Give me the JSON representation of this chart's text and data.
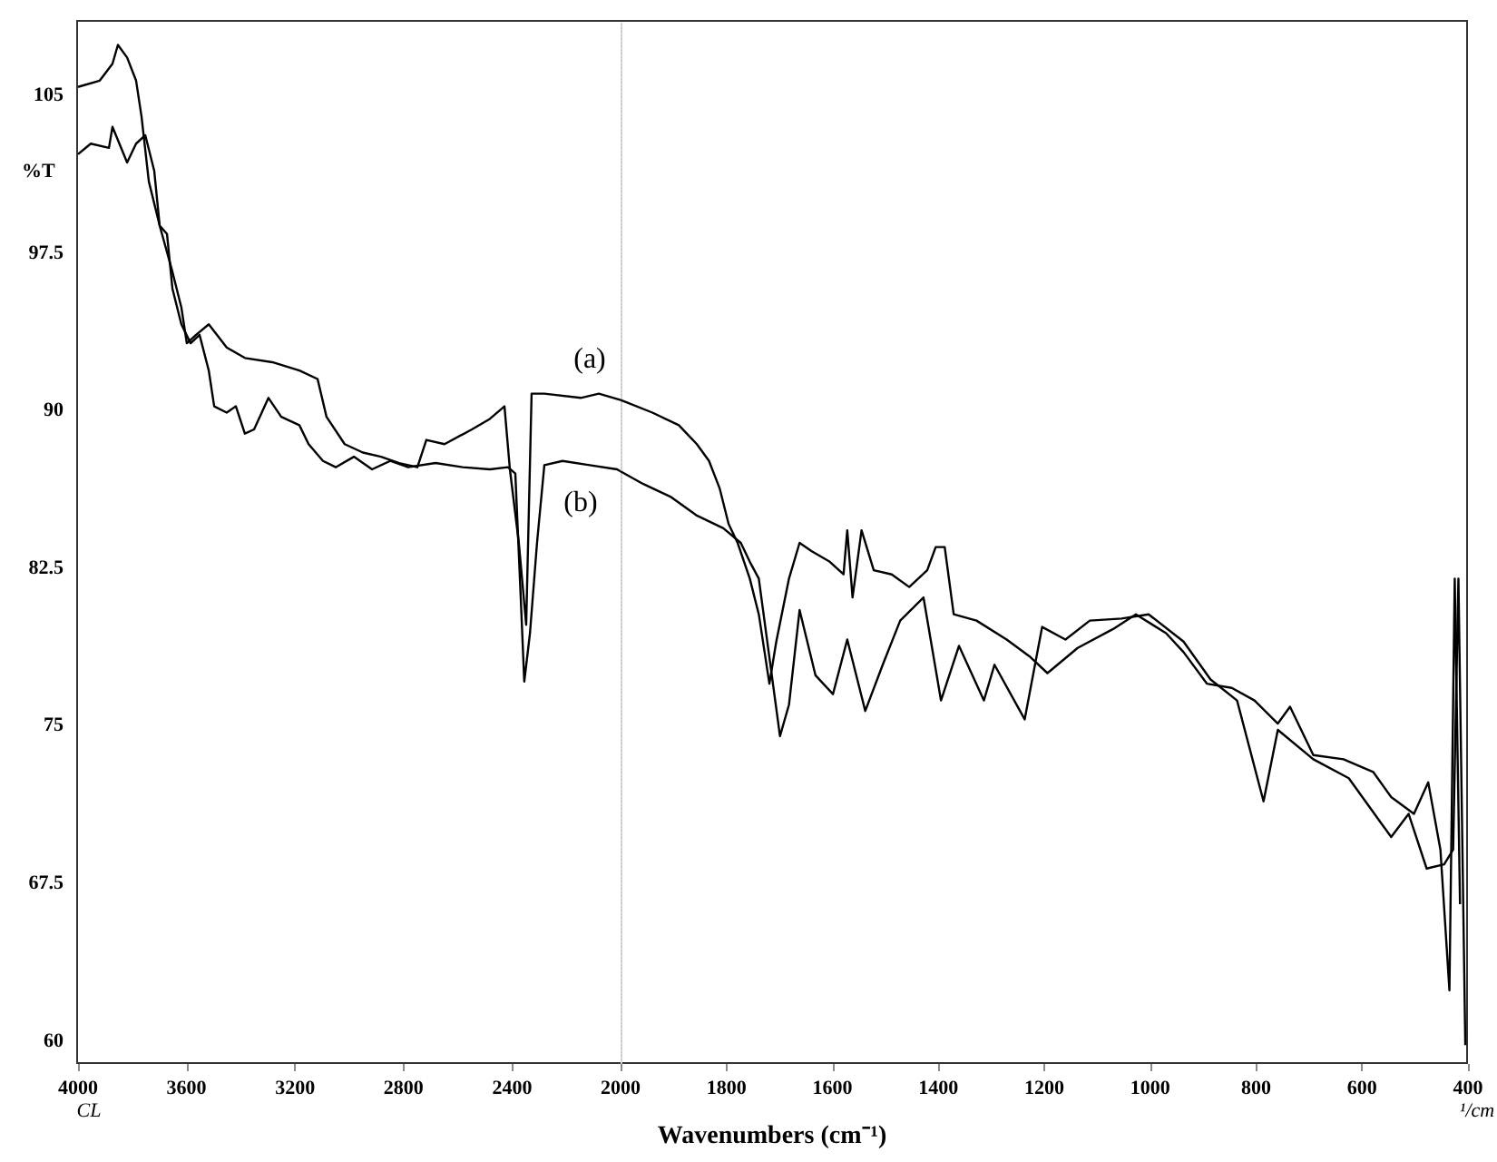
{
  "chart_data": [
    {
      "type": "line",
      "ylabel": "%T",
      "xlim": [
        4000,
        2000
      ],
      "xticks": [
        4000,
        3600,
        3200,
        2800,
        2400,
        2000
      ],
      "ylim": [
        58.9,
        108.5
      ],
      "yticks": [
        60,
        67.5,
        75,
        82.5,
        90,
        97.5,
        105
      ],
      "grid": false,
      "marker": "none",
      "line_style": "solid",
      "annotations": [
        "(a)",
        "(b)",
        "CL"
      ],
      "series": [
        {
          "color": "#000000",
          "x": [
            4000,
            3920,
            3873,
            3853,
            3819,
            3786,
            3766,
            3739,
            3699,
            3652,
            3619,
            3599,
            3565,
            3518,
            3452,
            3385,
            3284,
            3184,
            3117,
            3084,
            3017,
            2950,
            2883,
            2816,
            2749,
            2716,
            2649,
            2548,
            2482,
            2428,
            2408,
            2375,
            2348,
            2328,
            2281,
            2147,
            2080,
            2000
          ],
          "values": [
            105.4,
            105.7,
            106.5,
            107.4,
            106.8,
            105.7,
            104.0,
            100.9,
            98.8,
            96.6,
            94.9,
            93.2,
            93.6,
            94.1,
            93.0,
            92.5,
            92.3,
            91.9,
            91.5,
            89.7,
            88.4,
            88.0,
            87.8,
            87.5,
            87.3,
            88.6,
            88.4,
            89.1,
            89.6,
            90.2,
            87.2,
            83.7,
            79.8,
            90.8,
            90.8,
            90.6,
            90.8,
            90.5
          ]
        },
        {
          "color": "#000000",
          "x": [
            4000,
            3953,
            3886,
            3873,
            3819,
            3786,
            3752,
            3719,
            3699,
            3672,
            3652,
            3619,
            3585,
            3552,
            3518,
            3498,
            3452,
            3418,
            3385,
            3351,
            3298,
            3251,
            3184,
            3150,
            3097,
            3050,
            2983,
            2916,
            2849,
            2783,
            2682,
            2582,
            2482,
            2415,
            2388,
            2368,
            2355,
            2334,
            2308,
            2281,
            2214,
            2114,
            2013,
            2000
          ],
          "values": [
            102.2,
            102.7,
            102.5,
            103.5,
            101.8,
            102.7,
            103.1,
            101.4,
            98.8,
            98.4,
            95.8,
            94.1,
            93.2,
            93.6,
            91.9,
            90.2,
            89.9,
            90.2,
            88.9,
            89.1,
            90.6,
            89.7,
            89.3,
            88.4,
            87.6,
            87.3,
            87.8,
            87.2,
            87.6,
            87.3,
            87.5,
            87.3,
            87.2,
            87.3,
            87.0,
            81.1,
            77.1,
            79.4,
            83.7,
            87.4,
            87.6,
            87.4,
            87.2,
            87.1
          ]
        }
      ]
    },
    {
      "type": "line",
      "xlabel": "Wavenumbers (cm⁻¹)",
      "xlim": [
        2000,
        400
      ],
      "xticks": [
        {
          "value": 2000,
          "label": null
        },
        1800,
        1600,
        1400,
        1200,
        1000,
        800,
        600,
        400
      ],
      "ylim": [
        58.9,
        108.5
      ],
      "yticks": [
        60,
        67.5,
        75,
        82.5,
        90,
        97.5,
        105
      ],
      "tick_labels": "x",
      "grid": false,
      "marker": "none",
      "line_style": "solid",
      "annotations": [
        "¹/cm"
      ],
      "series": [
        {
          "color": "#000000",
          "x": [
            2000,
            1990,
            1940,
            1890,
            1856,
            1833,
            1813,
            1796,
            1779,
            1756,
            1739,
            1719,
            1706,
            1682,
            1662,
            1639,
            1605,
            1579,
            1572,
            1562,
            1545,
            1522,
            1488,
            1455,
            1421,
            1405,
            1388,
            1371,
            1328,
            1271,
            1228,
            1194,
            1137,
            1070,
            1027,
            970,
            937,
            893,
            846,
            803,
            759,
            736,
            692,
            635,
            579,
            545,
            502,
            475,
            452,
            435,
            425,
            415
          ],
          "values": [
            90.5,
            90.4,
            89.9,
            89.3,
            88.4,
            87.6,
            86.3,
            84.6,
            83.7,
            82.0,
            80.3,
            77.0,
            79.0,
            82.0,
            83.7,
            83.3,
            82.8,
            82.2,
            84.3,
            81.1,
            84.3,
            82.4,
            82.2,
            81.6,
            82.4,
            83.5,
            83.5,
            80.3,
            80.0,
            79.1,
            78.3,
            77.5,
            78.7,
            79.6,
            80.3,
            79.4,
            78.5,
            77.0,
            76.8,
            76.2,
            75.1,
            75.9,
            73.6,
            73.4,
            72.8,
            71.6,
            70.8,
            72.3,
            69.1,
            62.4,
            82.0,
            66.5
          ]
        },
        {
          "color": "#000000",
          "x": [
            2000,
            1957,
            1906,
            1856,
            1806,
            1773,
            1756,
            1739,
            1699,
            1682,
            1662,
            1632,
            1599,
            1572,
            1538,
            1505,
            1472,
            1428,
            1395,
            1361,
            1314,
            1294,
            1237,
            1204,
            1160,
            1114,
            1054,
            1003,
            937,
            886,
            836,
            786,
            759,
            692,
            625,
            545,
            512,
            478,
            445,
            428,
            418,
            405
          ],
          "values": [
            87.1,
            86.5,
            85.9,
            85.0,
            84.4,
            83.7,
            82.8,
            82.0,
            74.5,
            76.0,
            80.5,
            77.4,
            76.5,
            79.1,
            75.7,
            77.9,
            80.0,
            81.1,
            76.2,
            78.8,
            76.2,
            77.9,
            75.3,
            79.7,
            79.1,
            80.0,
            80.1,
            80.3,
            79.0,
            77.2,
            76.2,
            71.4,
            74.8,
            73.4,
            72.5,
            69.7,
            70.8,
            68.2,
            68.4,
            69.1,
            82.0,
            59.8
          ]
        }
      ]
    }
  ]
}
